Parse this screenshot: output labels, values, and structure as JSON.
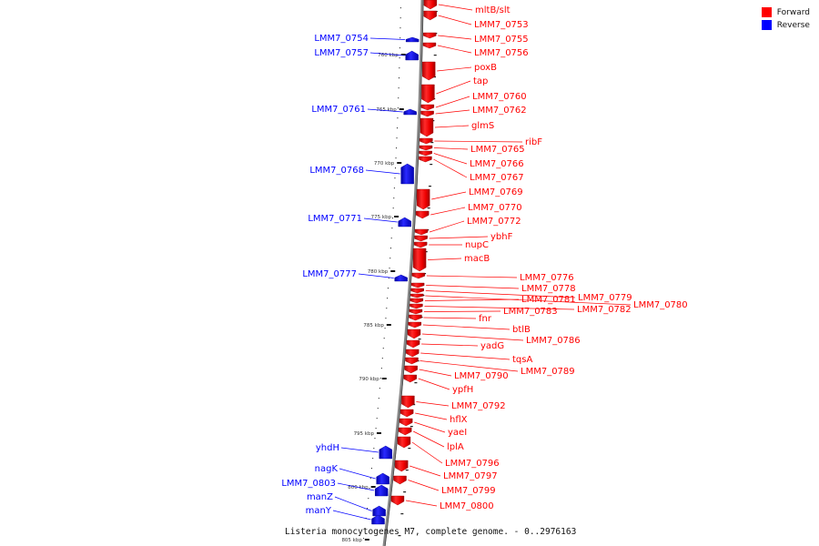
{
  "caption": "Listeria monocytogenes M7, complete genome. - 0..2976163",
  "legend": {
    "items": [
      {
        "label": "Forward",
        "color": "#ff0000"
      },
      {
        "label": "Reverse",
        "color": "#0000ff"
      }
    ]
  },
  "ticks": [
    "760 kbp",
    "765 kbp",
    "770 kbp",
    "775 kbp",
    "780 kbp",
    "785 kbp",
    "790 kbp",
    "795 kbp",
    "800 kbp",
    "805 kbp"
  ],
  "forward_genes": [
    {
      "name": "mltB/slt"
    },
    {
      "name": "LMM7_0753"
    },
    {
      "name": "LMM7_0755"
    },
    {
      "name": "LMM7_0756"
    },
    {
      "name": "poxB"
    },
    {
      "name": "tap"
    },
    {
      "name": "LMM7_0760"
    },
    {
      "name": "LMM7_0762"
    },
    {
      "name": "glmS"
    },
    {
      "name": "ribF"
    },
    {
      "name": "LMM7_0765"
    },
    {
      "name": "LMM7_0766"
    },
    {
      "name": "LMM7_0767"
    },
    {
      "name": "LMM7_0769"
    },
    {
      "name": "LMM7_0770"
    },
    {
      "name": "LMM7_0772"
    },
    {
      "name": "ybhF"
    },
    {
      "name": "nupC"
    },
    {
      "name": "macB"
    },
    {
      "name": "LMM7_0776"
    },
    {
      "name": "LMM7_0778"
    },
    {
      "name": "LMM7_0779"
    },
    {
      "name": "LMM7_0780"
    },
    {
      "name": "LMM7_0781"
    },
    {
      "name": "LMM7_0782"
    },
    {
      "name": "LMM7_0783"
    },
    {
      "name": "fnr"
    },
    {
      "name": "btlB"
    },
    {
      "name": "LMM7_0786"
    },
    {
      "name": "yadG"
    },
    {
      "name": "tqsA"
    },
    {
      "name": "LMM7_0789"
    },
    {
      "name": "LMM7_0790"
    },
    {
      "name": "ypfH"
    },
    {
      "name": "LMM7_0792"
    },
    {
      "name": "hflX"
    },
    {
      "name": "yaeI"
    },
    {
      "name": "lplA"
    },
    {
      "name": "LMM7_0796"
    },
    {
      "name": "LMM7_0797"
    },
    {
      "name": "LMM7_0799"
    },
    {
      "name": "LMM7_0800"
    }
  ],
  "reverse_genes": [
    {
      "name": "LMM7_0754"
    },
    {
      "name": "LMM7_0757"
    },
    {
      "name": "LMM7_0761"
    },
    {
      "name": "LMM7_0768"
    },
    {
      "name": "LMM7_0771"
    },
    {
      "name": "LMM7_0777"
    },
    {
      "name": "yhdH"
    },
    {
      "name": "nagK"
    },
    {
      "name": "LMM7_0803"
    },
    {
      "name": "manZ"
    },
    {
      "name": "manY"
    }
  ]
}
